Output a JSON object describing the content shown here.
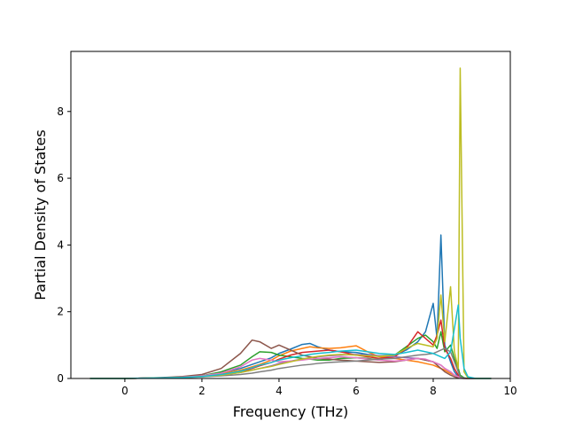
{
  "chart_data": {
    "type": "line",
    "title": "",
    "xlabel": "Frequency (THz)",
    "ylabel": "Partial Density of States",
    "xlim": [
      -1.4,
      10.0
    ],
    "ylim": [
      0,
      9.8
    ],
    "xticks": [
      0,
      2,
      4,
      6,
      8,
      10
    ],
    "yticks": [
      0,
      2,
      4,
      6,
      8
    ],
    "xtick_labels": [
      "0",
      "2",
      "4",
      "6",
      "8",
      "10"
    ],
    "ytick_labels": [
      "0",
      "2",
      "4",
      "6",
      "8"
    ],
    "grid": false,
    "legend": "none",
    "x": [
      -0.9,
      -0.4,
      0.0,
      0.5,
      1.0,
      1.5,
      2.0,
      2.5,
      3.0,
      3.3,
      3.5,
      3.8,
      4.0,
      4.3,
      4.6,
      4.8,
      5.0,
      5.3,
      5.6,
      6.0,
      6.3,
      6.6,
      7.0,
      7.3,
      7.6,
      7.8,
      8.0,
      8.1,
      8.2,
      8.3,
      8.45,
      8.55,
      8.65,
      8.7,
      8.8,
      8.9,
      9.1,
      9.5
    ],
    "series": [
      {
        "color": "#1f77b4",
        "values": [
          0,
          0,
          0,
          0.01,
          0.02,
          0.04,
          0.08,
          0.18,
          0.3,
          0.42,
          0.5,
          0.62,
          0.75,
          0.88,
          1.02,
          1.05,
          0.95,
          0.85,
          0.8,
          0.78,
          0.72,
          0.68,
          0.7,
          0.85,
          1.1,
          1.4,
          2.25,
          1.2,
          4.3,
          1.0,
          0.5,
          0.2,
          0.05,
          0.02,
          0.01,
          0,
          0,
          0
        ]
      },
      {
        "color": "#ff7f0e",
        "values": [
          0,
          0,
          0,
          0.01,
          0.02,
          0.04,
          0.07,
          0.15,
          0.25,
          0.35,
          0.42,
          0.55,
          0.68,
          0.82,
          0.9,
          0.95,
          0.92,
          0.9,
          0.92,
          0.98,
          0.8,
          0.65,
          0.6,
          0.55,
          0.5,
          0.45,
          0.4,
          0.35,
          0.3,
          0.25,
          0.15,
          0.1,
          0.05,
          0.02,
          0.01,
          0,
          0,
          0
        ]
      },
      {
        "color": "#2ca02c",
        "values": [
          0,
          0,
          0,
          0.01,
          0.02,
          0.04,
          0.08,
          0.2,
          0.4,
          0.65,
          0.8,
          0.78,
          0.7,
          0.65,
          0.6,
          0.58,
          0.55,
          0.55,
          0.6,
          0.62,
          0.6,
          0.55,
          0.7,
          0.95,
          1.2,
          1.3,
          1.1,
          0.9,
          1.4,
          0.8,
          1.0,
          0.6,
          0.3,
          0.1,
          0.02,
          0,
          0,
          0
        ]
      },
      {
        "color": "#d62728",
        "values": [
          0,
          0,
          0,
          0.01,
          0.02,
          0.03,
          0.06,
          0.12,
          0.2,
          0.3,
          0.38,
          0.48,
          0.58,
          0.7,
          0.78,
          0.8,
          0.82,
          0.85,
          0.8,
          0.7,
          0.65,
          0.6,
          0.65,
          0.9,
          1.4,
          1.2,
          1.0,
          1.3,
          1.75,
          0.9,
          0.6,
          0.3,
          0.1,
          0.03,
          0.01,
          0,
          0,
          0
        ]
      },
      {
        "color": "#9467bd",
        "values": [
          0,
          0,
          0,
          0.01,
          0.02,
          0.03,
          0.05,
          0.1,
          0.18,
          0.25,
          0.3,
          0.38,
          0.45,
          0.52,
          0.58,
          0.62,
          0.65,
          0.68,
          0.7,
          0.72,
          0.7,
          0.68,
          0.65,
          0.62,
          0.6,
          0.55,
          0.5,
          0.45,
          0.4,
          0.3,
          0.2,
          0.1,
          0.05,
          0.02,
          0.01,
          0,
          0,
          0
        ]
      },
      {
        "color": "#8c564b",
        "values": [
          0,
          0,
          0,
          0.01,
          0.03,
          0.06,
          0.12,
          0.3,
          0.75,
          1.15,
          1.1,
          0.9,
          1.0,
          0.85,
          0.7,
          0.65,
          0.6,
          0.58,
          0.55,
          0.52,
          0.5,
          0.48,
          0.5,
          0.55,
          0.6,
          0.55,
          0.5,
          0.4,
          0.3,
          0.2,
          0.1,
          0.05,
          0.02,
          0.01,
          0,
          0,
          0,
          0
        ]
      },
      {
        "color": "#e377c2",
        "values": [
          0,
          0,
          0,
          0.01,
          0.02,
          0.04,
          0.08,
          0.16,
          0.35,
          0.55,
          0.6,
          0.55,
          0.5,
          0.52,
          0.55,
          0.58,
          0.6,
          0.62,
          0.65,
          0.62,
          0.58,
          0.55,
          0.52,
          0.55,
          0.6,
          0.58,
          0.5,
          0.45,
          0.4,
          0.3,
          0.2,
          0.1,
          0.05,
          0.02,
          0,
          0,
          0,
          0
        ]
      },
      {
        "color": "#7f7f7f",
        "values": [
          0,
          0,
          0,
          0.01,
          0.02,
          0.03,
          0.05,
          0.08,
          0.12,
          0.16,
          0.2,
          0.25,
          0.3,
          0.35,
          0.4,
          0.42,
          0.45,
          0.48,
          0.5,
          0.52,
          0.55,
          0.58,
          0.6,
          0.65,
          0.7,
          0.72,
          0.75,
          0.8,
          0.85,
          0.9,
          0.8,
          0.5,
          0.2,
          0.05,
          0.01,
          0,
          0,
          0
        ]
      },
      {
        "color": "#bcbd22",
        "values": [
          0,
          0,
          0,
          0.01,
          0.02,
          0.03,
          0.06,
          0.1,
          0.18,
          0.25,
          0.3,
          0.36,
          0.42,
          0.5,
          0.58,
          0.62,
          0.66,
          0.7,
          0.72,
          0.7,
          0.68,
          0.66,
          0.7,
          0.9,
          1.05,
          1.0,
          0.95,
          1.2,
          2.5,
          1.1,
          2.75,
          0.8,
          0.3,
          9.3,
          0.2,
          0.02,
          0,
          0
        ]
      },
      {
        "color": "#17becf",
        "values": [
          0,
          0,
          0,
          0.01,
          0.02,
          0.03,
          0.06,
          0.12,
          0.22,
          0.32,
          0.4,
          0.48,
          0.55,
          0.62,
          0.68,
          0.72,
          0.75,
          0.78,
          0.82,
          0.85,
          0.8,
          0.75,
          0.72,
          0.78,
          0.85,
          0.8,
          0.75,
          0.7,
          0.65,
          0.6,
          0.8,
          1.5,
          2.2,
          1.2,
          0.3,
          0.05,
          0,
          0
        ]
      }
    ]
  }
}
